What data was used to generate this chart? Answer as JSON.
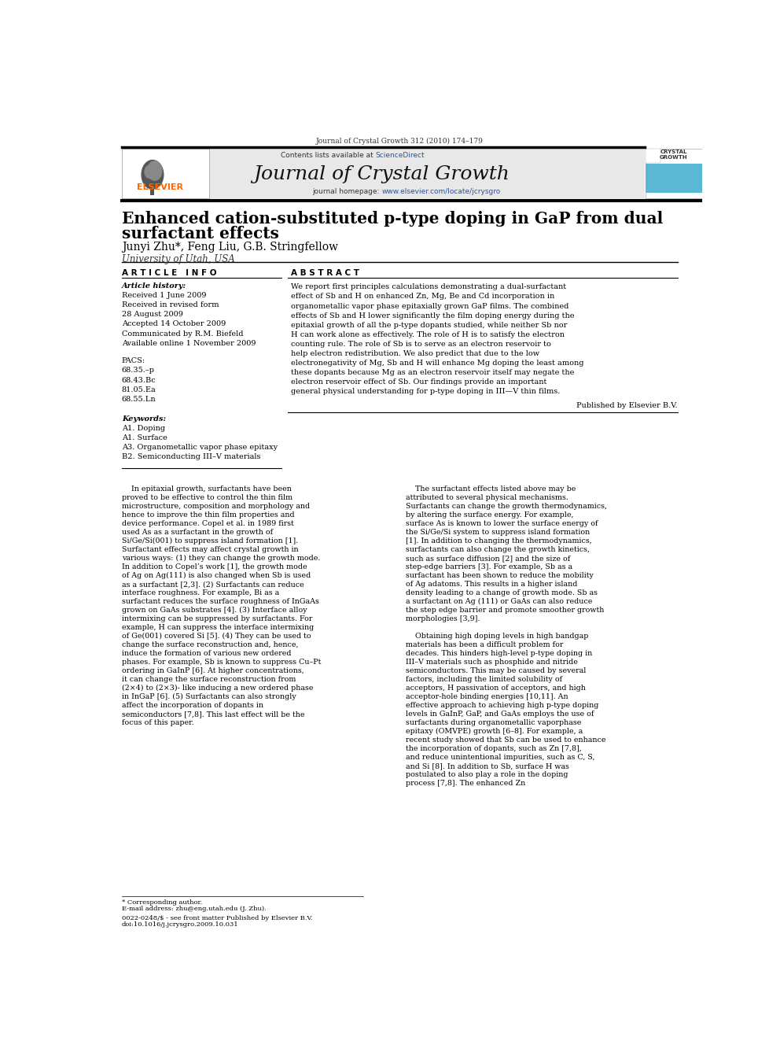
{
  "page_width": 9.92,
  "page_height": 13.23,
  "background_color": "#ffffff",
  "header_journal_text": "Journal of Crystal Growth 312 (2010) 174–179",
  "header_bar_color": "#000000",
  "banner_bg_color": "#e8e8e8",
  "banner_text": "Journal of Crystal Growth",
  "banner_contents_plain": "Contents lists available at ",
  "banner_contents_link": "ScienceDirect",
  "sciencedirect_color": "#2255aa",
  "url_color": "#2255aa",
  "elsevier_color": "#FF6600",
  "title_line1": "Enhanced cation-substituted p-type doping in GaP from dual",
  "title_line2": "surfactant effects",
  "authors": "Junyi Zhu*, Feng Liu, G.B. Stringfellow",
  "affiliation": "University of Utah, USA",
  "article_info_header": "A R T I C L E   I N F O",
  "abstract_header": "A B S T R A C T",
  "article_history_label": "Article history:",
  "article_history": [
    "Received 1 June 2009",
    "Received in revised form",
    "28 August 2009",
    "Accepted 14 October 2009",
    "Communicated by R.M. Biefeld",
    "Available online 1 November 2009"
  ],
  "pacs_label": "PACS:",
  "pacs": [
    "68.35.–p",
    "68.43.Bc",
    "81.05.Ea",
    "68.55.Ln"
  ],
  "keywords_label": "Keywords:",
  "keywords": [
    "A1. Doping",
    "A1. Surface",
    "A3. Organometallic vapor phase epitaxy",
    "B2. Semiconducting III–V materials"
  ],
  "abstract_text": "We report first principles calculations demonstrating a dual-surfactant effect of Sb and H on enhanced Zn, Mg, Be and Cd incorporation in organometallic vapor phase epitaxially grown GaP films. The combined effects of Sb and H lower significantly the film doping energy during the epitaxial growth of all the p-type dopants studied, while neither Sb nor H can work alone as effectively. The role of H is to satisfy the electron counting rule. The role of Sb is to serve as an electron reservoir to help electron redistribution. We also predict that due to the low electronegativity of Mg, Sb and H will enhance Mg doping the least among these dopants because Mg as an electron reservoir itself may negate the electron reservoir effect of Sb. Our findings provide an important general physical understanding for p-type doping in III—V thin films.",
  "abstract_published": "Published by Elsevier B.V.",
  "body_col1": "In epitaxial growth, surfactants have been proved to be effective to control the thin film microstructure, composition and morphology and hence to improve the thin film properties and device performance. Copel et al. in 1989 first used As as a surfactant in the growth of Si/Ge/Si(001) to suppress island formation [1]. Surfactant effects may affect crystal growth in various ways: (1) they can change the growth mode. In addition to Copel’s work [1], the growth mode of Ag on Ag(111) is also changed when Sb is used as a surfactant [2,3]. (2) Surfactants can reduce interface roughness. For example, Bi as a surfactant reduces the surface roughness of InGaAs grown on GaAs substrates [4]. (3) Interface alloy intermixing can be suppressed by surfactants. For example, H can suppress the interface intermixing of Ge(001) covered Si [5]. (4) They can be used to change the surface reconstruction and, hence, induce the formation of various new ordered phases. For example, Sb is known to suppress Cu–Pt ordering in GaInP [6]. At higher concentrations, it can change the surface reconstruction from (2×4) to (2×3)- like inducing a new ordered phase in InGaP [6]. (5) Surfactants can also strongly affect the incorporation of dopants in semiconductors [7,8]. This last effect will be the focus of this paper.",
  "body_col2": "The surfactant effects listed above may be attributed to several physical mechanisms. Surfactants can change the growth thermodynamics, by altering the surface energy. For example, surface As is known to lower the surface energy of the Si/Ge/Si system to suppress island formation [1]. In addition to changing the thermodynamics, surfactants can also change the growth kinetics, such as surface diffusion [2] and the size of step-edge barriers [3]. For example, Sb as a surfactant has been shown to reduce the mobility of Ag adatoms. This results in a higher island density leading to a change of growth mode. Sb as a surfactant on Ag (111) or GaAs can also reduce the step edge barrier and promote smoother growth morphologies [3,9].\n\nObtaining high doping levels in high bandgap materials has been a difficult problem for decades. This hinders high-level p-type doping in III–V materials such as phosphide and nitride semiconductors. This may be caused by several factors, including the limited solubility of acceptors, H passivation of acceptors, and high acceptor-hole binding energies [10,11]. An effective approach to achieving high p-type doping levels in GaInP, GaP, and GaAs employs the use of surfactants during organometallic vaporphase epitaxy (OMVPE) growth [6–8]. For example, a recent study showed that Sb can be used to enhance the incorporation of dopants, such as Zn [7,8], and reduce unintentional impurities, such as C, S, and Si [8]. In addition to Sb, surface H was postulated to also play a role in the doping process [7,8]. The enhanced Zn",
  "footer_text1": "* Corresponding author.",
  "footer_text2": "E-mail address: zhu@eng.utah.edu (J. Zhu).",
  "footer_text3": "0022-0248/$ - see front matter Published by Elsevier B.V.",
  "footer_text4": "doi:10.1016/j.jcrysgro.2009.10.031"
}
